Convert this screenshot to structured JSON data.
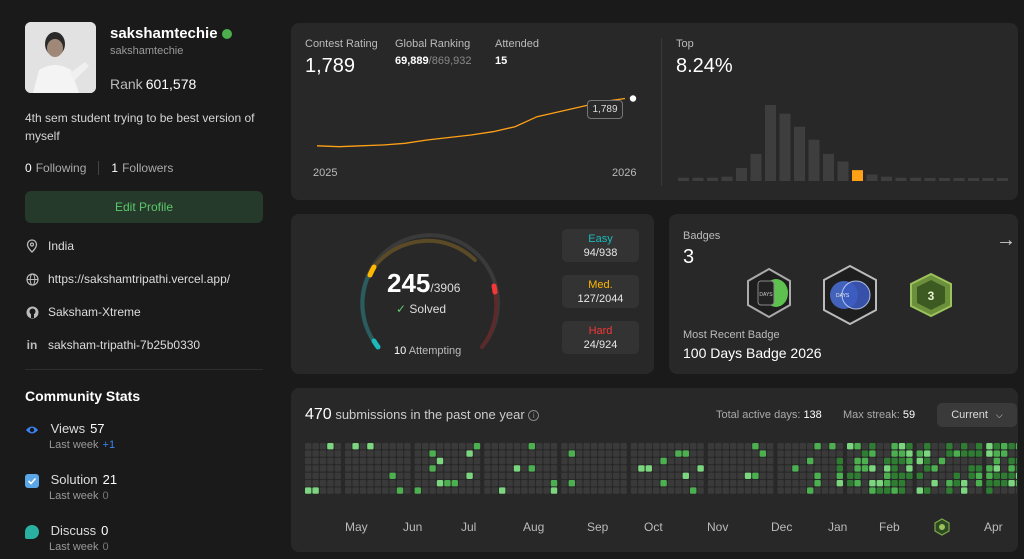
{
  "profile": {
    "username": "sakshamtechie",
    "handle": "sakshamtechie",
    "rank_label": "Rank",
    "rank_value": "601,578",
    "bio": "4th sem student trying to be best version of myself",
    "following_count": "0",
    "following_label": "Following",
    "followers_count": "1",
    "followers_label": "Followers",
    "edit_label": "Edit Profile",
    "location": "India",
    "website": "https://sakshamtripathi.vercel.app/",
    "github": "Saksham-Xtreme",
    "linkedin": "saksham-tripathi-7b25b0330"
  },
  "community": {
    "title": "Community Stats",
    "views": {
      "label": "Views",
      "value": "57",
      "sub": "Last week",
      "delta": "+1"
    },
    "solution": {
      "label": "Solution",
      "value": "21",
      "sub": "Last week",
      "delta": "0"
    },
    "discuss": {
      "label": "Discuss",
      "value": "0",
      "sub": "Last week",
      "delta": "0"
    }
  },
  "contest": {
    "rating_label": "Contest Rating",
    "rating": "1,789",
    "global_label": "Global Ranking",
    "global_rank": "69,889",
    "global_total": "/869,932",
    "attended_label": "Attended",
    "attended": "15",
    "tooltip": "1,789",
    "x_start": "2025",
    "x_end": "2026",
    "top_label": "Top",
    "top_value": "8.24%"
  },
  "solved": {
    "count": "245",
    "total": "/3906",
    "solved_label": "Solved",
    "attempting_count": "10",
    "attempting_label": "Attempting",
    "easy_label": "Easy",
    "easy": "94/938",
    "med_label": "Med.",
    "med": "127/2044",
    "hard_label": "Hard",
    "hard": "24/924"
  },
  "badges": {
    "label": "Badges",
    "count": "3",
    "recent_label": "Most Recent Badge",
    "recent": "100 Days Badge 2026",
    "b1_text": "DAYS",
    "b2_text": "DAYS",
    "b3_text": "3"
  },
  "submissions": {
    "count": "470",
    "label": "submissions in the past one year",
    "active_label": "Total active days:",
    "active": "138",
    "streak_label": "Max streak:",
    "streak": "59",
    "period": "Current",
    "months": [
      "May",
      "Jun",
      "Jul",
      "Aug",
      "Sep",
      "Oct",
      "Nov",
      "Dec",
      "Jan",
      "Feb",
      "Apr"
    ]
  },
  "colors": {
    "easy": "#1cbaba",
    "medium": "#ffb700",
    "hard": "#f63737",
    "accent": "#ffa116"
  },
  "chart_data": [
    {
      "type": "line",
      "x": [
        "2025",
        "",
        "",
        "",
        "",
        "",
        "",
        "",
        "",
        "",
        "",
        "",
        "",
        "",
        "2026"
      ],
      "series": [
        {
          "values": [
            1505,
            1500,
            1505,
            1510,
            1520,
            1540,
            1555,
            1570,
            1590,
            1620,
            1680,
            1710,
            1740,
            1770,
            1789
          ]
        }
      ]
    },
    {
      "type": "bar",
      "values": [
        3,
        3,
        3,
        4,
        12,
        25,
        70,
        62,
        50,
        38,
        25,
        18,
        10,
        6,
        4,
        3,
        3,
        2,
        2,
        2,
        2,
        2,
        2
      ],
      "highlight_index": 12
    }
  ]
}
